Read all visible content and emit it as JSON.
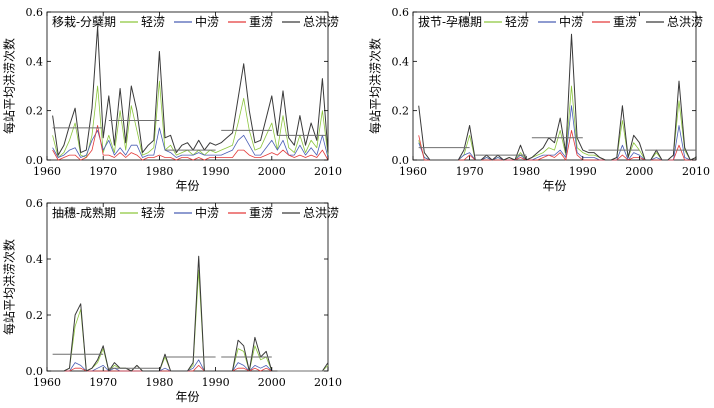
{
  "colors": {
    "light": "#8dc63f",
    "medium": "#4b5fb5",
    "heavy": "#e33a3a",
    "total": "#3a3a3a",
    "mean": "#6f6f6f"
  },
  "chart_data": [
    {
      "type": "line",
      "title": "移栽-分蘖期",
      "xlabel": "年份",
      "ylabel": "每站平均洪涝次数",
      "xlim": [
        1960,
        2010
      ],
      "ylim": [
        0,
        0.6
      ],
      "xticks": [
        "1960",
        "1970",
        "1980",
        "1990",
        "2000",
        "2010"
      ],
      "yticks": [
        "0.0",
        "0.2",
        "0.4",
        "0.6"
      ],
      "legend": [
        "轻涝",
        "中涝",
        "重涝",
        "总洪涝"
      ],
      "x": [
        1961,
        1962,
        1963,
        1964,
        1965,
        1966,
        1967,
        1968,
        1969,
        1970,
        1971,
        1972,
        1973,
        1974,
        1975,
        1976,
        1977,
        1978,
        1979,
        1980,
        1981,
        1982,
        1983,
        1984,
        1985,
        1986,
        1987,
        1988,
        1989,
        1990,
        1991,
        1992,
        1993,
        1994,
        1995,
        1996,
        1997,
        1998,
        1999,
        2000,
        2001,
        2002,
        2003,
        2004,
        2005,
        2006,
        2007,
        2008,
        2009,
        2010
      ],
      "series": [
        {
          "name": "轻涝",
          "values": [
            0.1,
            0.01,
            0.03,
            0.08,
            0.15,
            0.02,
            0.01,
            0.1,
            0.3,
            0.03,
            0.1,
            0.03,
            0.2,
            0.04,
            0.22,
            0.12,
            0.02,
            0.03,
            0.05,
            0.32,
            0.04,
            0.06,
            0.02,
            0.03,
            0.04,
            0.02,
            0.04,
            0.02,
            0.04,
            0.03,
            0.04,
            0.05,
            0.06,
            0.15,
            0.25,
            0.12,
            0.04,
            0.05,
            0.1,
            0.15,
            0.04,
            0.18,
            0.05,
            0.03,
            0.1,
            0.03,
            0.08,
            0.05,
            0.2,
            0.02
          ]
        },
        {
          "name": "中涝",
          "values": [
            0.05,
            0.01,
            0.02,
            0.04,
            0.05,
            0.01,
            0.02,
            0.08,
            0.12,
            0.04,
            0.08,
            0.02,
            0.05,
            0.02,
            0.06,
            0.06,
            0.01,
            0.02,
            0.02,
            0.13,
            0.04,
            0.03,
            0.01,
            0.02,
            0.02,
            0.02,
            0.03,
            0.02,
            0.02,
            0.02,
            0.02,
            0.03,
            0.04,
            0.08,
            0.1,
            0.06,
            0.02,
            0.02,
            0.05,
            0.08,
            0.04,
            0.08,
            0.02,
            0.02,
            0.06,
            0.02,
            0.05,
            0.02,
            0.1,
            0.01
          ]
        },
        {
          "name": "重涝",
          "values": [
            0.04,
            0.0,
            0.01,
            0.02,
            0.02,
            0.0,
            0.01,
            0.04,
            0.14,
            0.02,
            0.02,
            0.01,
            0.03,
            0.01,
            0.03,
            0.02,
            0.0,
            0.01,
            0.01,
            0.02,
            0.01,
            0.01,
            0.0,
            0.01,
            0.01,
            0.0,
            0.01,
            0.0,
            0.01,
            0.01,
            0.01,
            0.01,
            0.01,
            0.04,
            0.04,
            0.02,
            0.01,
            0.01,
            0.02,
            0.03,
            0.02,
            0.04,
            0.02,
            0.01,
            0.02,
            0.01,
            0.02,
            0.01,
            0.04,
            0.0
          ]
        },
        {
          "name": "总洪涝",
          "values": [
            0.18,
            0.02,
            0.06,
            0.14,
            0.21,
            0.03,
            0.04,
            0.21,
            0.54,
            0.09,
            0.26,
            0.06,
            0.29,
            0.07,
            0.3,
            0.2,
            0.03,
            0.06,
            0.08,
            0.44,
            0.09,
            0.1,
            0.03,
            0.06,
            0.07,
            0.04,
            0.08,
            0.04,
            0.07,
            0.06,
            0.07,
            0.09,
            0.11,
            0.25,
            0.39,
            0.2,
            0.07,
            0.08,
            0.17,
            0.26,
            0.1,
            0.28,
            0.09,
            0.06,
            0.18,
            0.06,
            0.15,
            0.08,
            0.33,
            0.03
          ]
        }
      ],
      "mean_segments": [
        {
          "x": [
            1961,
            1970
          ],
          "y": 0.13
        },
        {
          "x": [
            1971,
            1980
          ],
          "y": 0.16
        },
        {
          "x": [
            1981,
            1990
          ],
          "y": 0.04
        },
        {
          "x": [
            1991,
            2000
          ],
          "y": 0.12
        },
        {
          "x": [
            2001,
            2010
          ],
          "y": 0.1
        }
      ]
    },
    {
      "type": "line",
      "title": "拔节-孕穗期",
      "xlabel": "年份",
      "ylabel": "每站平均洪涝次数",
      "xlim": [
        1960,
        2010
      ],
      "ylim": [
        0,
        0.6
      ],
      "xticks": [
        "1960",
        "1970",
        "1980",
        "1990",
        "2000",
        "2010"
      ],
      "yticks": [
        "0.0",
        "0.2",
        "0.4",
        "0.6"
      ],
      "legend": [
        "轻涝",
        "中涝",
        "重涝",
        "总洪涝"
      ],
      "x": [
        1961,
        1962,
        1963,
        1964,
        1965,
        1966,
        1967,
        1968,
        1969,
        1970,
        1971,
        1972,
        1973,
        1974,
        1975,
        1976,
        1977,
        1978,
        1979,
        1980,
        1981,
        1982,
        1983,
        1984,
        1985,
        1986,
        1987,
        1988,
        1989,
        1990,
        1991,
        1992,
        1993,
        1994,
        1995,
        1996,
        1997,
        1998,
        1999,
        2000,
        2001,
        2002,
        2003,
        2004,
        2005,
        2006,
        2007,
        2008,
        2009,
        2010
      ],
      "series": [
        {
          "name": "轻涝",
          "values": [
            0.08,
            0.01,
            0.0,
            0.0,
            0.0,
            0.0,
            0.0,
            0.0,
            0.02,
            0.1,
            0.0,
            0.0,
            0.01,
            0.0,
            0.01,
            0.0,
            0.01,
            0.0,
            0.03,
            0.0,
            0.01,
            0.02,
            0.03,
            0.05,
            0.04,
            0.12,
            0.02,
            0.3,
            0.05,
            0.03,
            0.02,
            0.02,
            0.01,
            0.0,
            0.0,
            0.01,
            0.16,
            0.01,
            0.07,
            0.04,
            0.0,
            0.0,
            0.03,
            0.0,
            0.0,
            0.02,
            0.24,
            0.04,
            0.0,
            0.01
          ]
        },
        {
          "name": "中涝",
          "values": [
            0.07,
            0.01,
            0.0,
            0.0,
            0.0,
            0.0,
            0.0,
            0.0,
            0.02,
            0.03,
            0.0,
            0.0,
            0.01,
            0.0,
            0.01,
            0.0,
            0.0,
            0.0,
            0.02,
            0.0,
            0.0,
            0.01,
            0.02,
            0.02,
            0.02,
            0.04,
            0.01,
            0.22,
            0.03,
            0.01,
            0.01,
            0.01,
            0.0,
            0.0,
            0.0,
            0.0,
            0.06,
            0.0,
            0.03,
            0.02,
            0.0,
            0.0,
            0.01,
            0.0,
            0.0,
            0.0,
            0.14,
            0.01,
            0.0,
            0.0
          ]
        },
        {
          "name": "重涝",
          "values": [
            0.1,
            0.0,
            0.0,
            0.0,
            0.0,
            0.0,
            0.0,
            0.0,
            0.0,
            0.02,
            0.0,
            0.0,
            0.0,
            0.0,
            0.0,
            0.0,
            0.0,
            0.0,
            0.01,
            0.0,
            0.0,
            0.0,
            0.01,
            0.02,
            0.01,
            0.03,
            0.0,
            0.12,
            0.02,
            0.0,
            0.0,
            0.0,
            0.0,
            0.0,
            0.0,
            0.0,
            0.02,
            0.0,
            0.01,
            0.01,
            0.0,
            0.0,
            0.0,
            0.0,
            0.0,
            0.0,
            0.06,
            0.0,
            0.0,
            0.0
          ]
        },
        {
          "name": "总洪涝",
          "values": [
            0.22,
            0.03,
            0.0,
            0.0,
            0.0,
            0.0,
            0.0,
            0.0,
            0.04,
            0.14,
            0.0,
            0.0,
            0.02,
            0.0,
            0.02,
            0.0,
            0.01,
            0.0,
            0.06,
            0.0,
            0.01,
            0.03,
            0.05,
            0.09,
            0.07,
            0.17,
            0.03,
            0.51,
            0.09,
            0.04,
            0.03,
            0.03,
            0.01,
            0.0,
            0.0,
            0.01,
            0.22,
            0.01,
            0.1,
            0.07,
            0.0,
            0.0,
            0.04,
            0.0,
            0.0,
            0.02,
            0.32,
            0.05,
            0.0,
            0.01
          ]
        }
      ],
      "mean_segments": [
        {
          "x": [
            1961,
            1970
          ],
          "y": 0.05
        },
        {
          "x": [
            1971,
            1980
          ],
          "y": 0.02
        },
        {
          "x": [
            1981,
            1990
          ],
          "y": 0.09
        },
        {
          "x": [
            1991,
            2000
          ],
          "y": 0.04
        },
        {
          "x": [
            2001,
            2010
          ],
          "y": 0.04
        }
      ]
    },
    {
      "type": "line",
      "title": "抽穗-成熟期",
      "xlabel": "年份",
      "ylabel": "每站平均洪涝次数",
      "xlim": [
        1960,
        2010
      ],
      "ylim": [
        0,
        0.6
      ],
      "xticks": [
        "1960",
        "1970",
        "1980",
        "1990",
        "2000",
        "2010"
      ],
      "yticks": [
        "0.0",
        "0.2",
        "0.4",
        "0.6"
      ],
      "legend": [
        "轻涝",
        "中涝",
        "重涝",
        "总洪涝"
      ],
      "x": [
        1961,
        1962,
        1963,
        1964,
        1965,
        1966,
        1967,
        1968,
        1969,
        1970,
        1971,
        1972,
        1973,
        1974,
        1975,
        1976,
        1977,
        1978,
        1979,
        1980,
        1981,
        1982,
        1983,
        1984,
        1985,
        1986,
        1987,
        1988,
        1989,
        1990,
        1991,
        1992,
        1993,
        1994,
        1995,
        1996,
        1997,
        1998,
        1999,
        2000,
        2001,
        2002,
        2003,
        2004,
        2005,
        2006,
        2007,
        2008,
        2009,
        2010
      ],
      "series": [
        {
          "name": "轻涝",
          "values": [
            0.0,
            0.0,
            0.0,
            0.01,
            0.16,
            0.22,
            0.0,
            0.01,
            0.03,
            0.08,
            0.0,
            0.02,
            0.01,
            0.01,
            0.0,
            0.02,
            0.0,
            0.0,
            0.0,
            0.0,
            0.05,
            0.0,
            0.0,
            0.0,
            0.0,
            0.02,
            0.36,
            0.0,
            0.0,
            0.0,
            0.0,
            0.0,
            0.0,
            0.08,
            0.07,
            0.0,
            0.09,
            0.04,
            0.05,
            0.0,
            0.0,
            0.0,
            0.0,
            0.0,
            0.0,
            0.0,
            0.0,
            0.0,
            0.0,
            0.02
          ]
        },
        {
          "name": "中涝",
          "values": [
            0.0,
            0.0,
            0.0,
            0.0,
            0.03,
            0.02,
            0.0,
            0.0,
            0.01,
            0.02,
            0.0,
            0.01,
            0.0,
            0.0,
            0.0,
            0.0,
            0.0,
            0.0,
            0.0,
            0.0,
            0.01,
            0.0,
            0.0,
            0.0,
            0.0,
            0.01,
            0.04,
            0.0,
            0.0,
            0.0,
            0.0,
            0.0,
            0.0,
            0.03,
            0.02,
            0.0,
            0.02,
            0.01,
            0.02,
            0.0,
            0.0,
            0.0,
            0.0,
            0.0,
            0.0,
            0.0,
            0.0,
            0.0,
            0.0,
            0.0
          ]
        },
        {
          "name": "重涝",
          "values": [
            0.0,
            0.0,
            0.0,
            0.0,
            0.01,
            0.01,
            0.0,
            0.0,
            0.0,
            0.0,
            0.0,
            0.0,
            0.0,
            0.0,
            0.0,
            0.0,
            0.0,
            0.0,
            0.0,
            0.0,
            0.0,
            0.0,
            0.0,
            0.0,
            0.0,
            0.0,
            0.02,
            0.0,
            0.0,
            0.0,
            0.0,
            0.0,
            0.0,
            0.01,
            0.01,
            0.0,
            0.01,
            0.0,
            0.01,
            0.0,
            0.0,
            0.0,
            0.0,
            0.0,
            0.0,
            0.0,
            0.0,
            0.0,
            0.0,
            0.0
          ]
        },
        {
          "name": "总洪涝",
          "values": [
            0.0,
            0.0,
            0.0,
            0.01,
            0.2,
            0.24,
            0.0,
            0.01,
            0.04,
            0.09,
            0.0,
            0.03,
            0.01,
            0.01,
            0.0,
            0.02,
            0.0,
            0.0,
            0.0,
            0.0,
            0.06,
            0.0,
            0.0,
            0.0,
            0.0,
            0.03,
            0.41,
            0.0,
            0.0,
            0.0,
            0.0,
            0.0,
            0.0,
            0.11,
            0.09,
            0.0,
            0.12,
            0.05,
            0.07,
            0.0,
            0.0,
            0.0,
            0.0,
            0.0,
            0.0,
            0.0,
            0.0,
            0.0,
            0.0,
            0.03
          ]
        }
      ],
      "mean_segments": [
        {
          "x": [
            1961,
            1970
          ],
          "y": 0.06
        },
        {
          "x": [
            1971,
            1980
          ],
          "y": 0.01
        },
        {
          "x": [
            1981,
            1990
          ],
          "y": 0.05
        },
        {
          "x": [
            1991,
            2000
          ],
          "y": 0.05
        },
        {
          "x": [
            2001,
            2010
          ],
          "y": 0.0
        }
      ]
    }
  ]
}
